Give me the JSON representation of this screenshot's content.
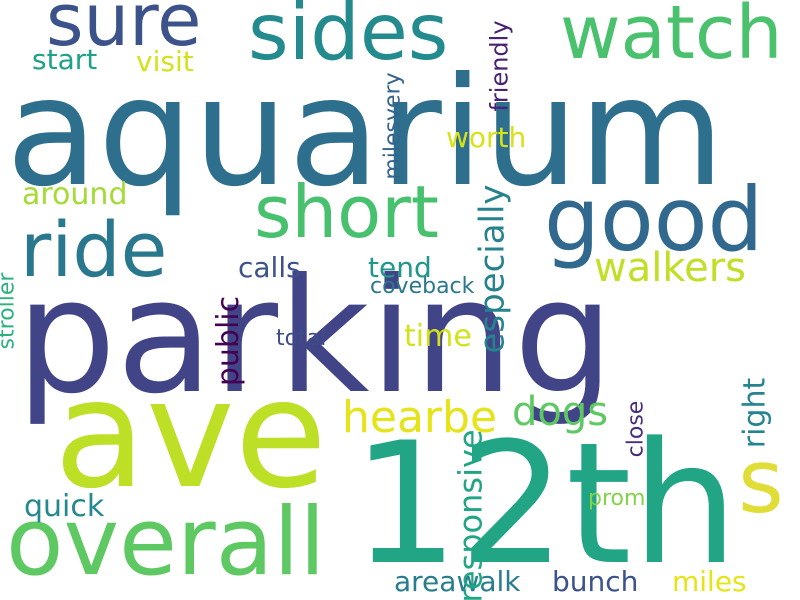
{
  "words": [
    {
      "text": "aquarium",
      "color": "#2e6f8e"
    },
    {
      "text": "parking",
      "color": "#414487"
    },
    {
      "text": "ave",
      "color": "#bddf26"
    },
    {
      "text": "12th",
      "color": "#21a585"
    },
    {
      "text": "overall",
      "color": "#5ec962"
    },
    {
      "text": "sides",
      "color": "#238a8d"
    },
    {
      "text": "watch",
      "color": "#4ac16d"
    },
    {
      "text": "sure",
      "color": "#3b528b"
    },
    {
      "text": "ride",
      "color": "#2a788e"
    },
    {
      "text": "short",
      "color": "#48c16e"
    },
    {
      "text": "good",
      "color": "#31688e"
    },
    {
      "text": "s",
      "color": "#e1dd37"
    },
    {
      "text": "walkers",
      "color": "#c0df25"
    },
    {
      "text": "hearbe",
      "color": "#e5e419"
    },
    {
      "text": "dogs",
      "color": "#5ec962"
    },
    {
      "text": "especially",
      "color": "#26828e"
    },
    {
      "text": "responsive",
      "color": "#21a685"
    },
    {
      "text": "quick",
      "color": "#23898e"
    },
    {
      "text": "areawalk",
      "color": "#287d8e"
    },
    {
      "text": "bunch",
      "color": "#3b528b"
    },
    {
      "text": "miles",
      "color": "#e5e419"
    },
    {
      "text": "right",
      "color": "#25848e"
    },
    {
      "text": "close",
      "color": "#472d7b"
    },
    {
      "text": "prom",
      "color": "#84d44b"
    },
    {
      "text": "public",
      "color": "#440154"
    },
    {
      "text": "calls",
      "color": "#3b528b"
    },
    {
      "text": "tend",
      "color": "#1f988b"
    },
    {
      "text": "coveback",
      "color": "#2a788e"
    },
    {
      "text": "time",
      "color": "#d2e21b"
    },
    {
      "text": "total",
      "color": "#3e4c8a"
    },
    {
      "text": "worth",
      "color": "#d8e219"
    },
    {
      "text": "around",
      "color": "#a5db36"
    },
    {
      "text": "start",
      "color": "#1fa187"
    },
    {
      "text": "visit",
      "color": "#d2e21b"
    },
    {
      "text": "friendly",
      "color": "#482173"
    },
    {
      "text": "milesvery",
      "color": "#33638d"
    },
    {
      "text": "stroller",
      "color": "#2db27d"
    }
  ]
}
